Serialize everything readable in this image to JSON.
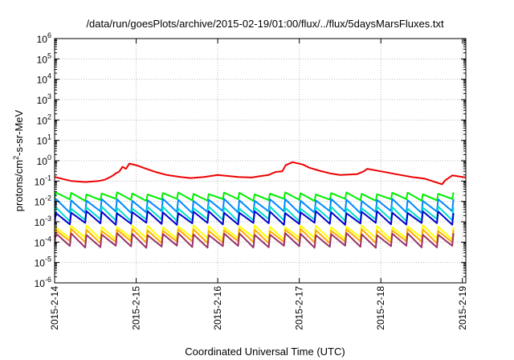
{
  "chart_data": {
    "type": "line",
    "title": "/data/run/goesPlots/archive/2015-02-19/01:00/flux/../flux/5daysMarsFluxes.txt",
    "xlabel": "Coordinated Universal Time (UTC)",
    "ylabel": {
      "base": "protons/cm",
      "exp": "2",
      "rest": "-s-sr-MeV"
    },
    "x_range": [
      "2015-2-14",
      "2015-2-19 01:00"
    ],
    "x_ticks": [
      "2015-2-14",
      "2015-2-15",
      "2015-2-16",
      "2015-2-17",
      "2015-2-18",
      "2015-2-19"
    ],
    "y_scale": "log",
    "ylim": [
      1e-06,
      1000000.0
    ],
    "y_ticks": [
      {
        "base": "10",
        "exp": "-6"
      },
      {
        "base": "10",
        "exp": "-5"
      },
      {
        "base": "10",
        "exp": "-4"
      },
      {
        "base": "10",
        "exp": "-3"
      },
      {
        "base": "10",
        "exp": "-2"
      },
      {
        "base": "10",
        "exp": "-1"
      },
      {
        "base": "10",
        "exp": "0"
      },
      {
        "base": "10",
        "exp": "1"
      },
      {
        "base": "10",
        "exp": "2"
      },
      {
        "base": "10",
        "exp": "3"
      },
      {
        "base": "10",
        "exp": "4"
      },
      {
        "base": "10",
        "exp": "5"
      },
      {
        "base": "10",
        "exp": "6"
      }
    ],
    "grid": true,
    "series": [
      {
        "color": "#ee0000",
        "values": [
          [
            "2015-02-14 00:00",
            0.16
          ],
          [
            "2015-02-14 03:00",
            0.12
          ],
          [
            "2015-02-14 05:00",
            0.1
          ],
          [
            "2015-02-14 09:00",
            0.09
          ],
          [
            "2015-02-14 13:00",
            0.1
          ],
          [
            "2015-02-14 15:00",
            0.12
          ],
          [
            "2015-02-14 17:00",
            0.18
          ],
          [
            "2015-02-14 18:00",
            0.24
          ],
          [
            "2015-02-14 19:00",
            0.29
          ],
          [
            "2015-02-14 20:00",
            0.5
          ],
          [
            "2015-02-14 21:00",
            0.4
          ],
          [
            "2015-02-14 22:00",
            0.72
          ],
          [
            "2015-02-15 00:00",
            0.6
          ],
          [
            "2015-02-15 03:00",
            0.4
          ],
          [
            "2015-02-15 06:00",
            0.27
          ],
          [
            "2015-02-15 09:00",
            0.2
          ],
          [
            "2015-02-15 13:00",
            0.16
          ],
          [
            "2015-02-15 16:00",
            0.14
          ],
          [
            "2015-02-15 20:00",
            0.16
          ],
          [
            "2015-02-16 00:00",
            0.2
          ],
          [
            "2015-02-16 06:00",
            0.16
          ],
          [
            "2015-02-16 10:00",
            0.15
          ],
          [
            "2015-02-16 13:00",
            0.18
          ],
          [
            "2015-02-16 15:00",
            0.2
          ],
          [
            "2015-02-16 17:00",
            0.28
          ],
          [
            "2015-02-16 19:00",
            0.3
          ],
          [
            "2015-02-16 20:00",
            0.6
          ],
          [
            "2015-02-16 22:00",
            0.85
          ],
          [
            "2015-02-17 01:00",
            0.65
          ],
          [
            "2015-02-17 03:00",
            0.45
          ],
          [
            "2015-02-17 06:00",
            0.32
          ],
          [
            "2015-02-17 09:00",
            0.24
          ],
          [
            "2015-02-17 12:00",
            0.2
          ],
          [
            "2015-02-17 17:00",
            0.22
          ],
          [
            "2015-02-17 19:00",
            0.3
          ],
          [
            "2015-02-17 20:00",
            0.4
          ],
          [
            "2015-02-18 00:00",
            0.3
          ],
          [
            "2015-02-18 05:00",
            0.21
          ],
          [
            "2015-02-18 09:00",
            0.16
          ],
          [
            "2015-02-18 13:00",
            0.13
          ],
          [
            "2015-02-18 18:00",
            0.07
          ],
          [
            "2015-02-18 19:00",
            0.11
          ],
          [
            "2015-02-18 21:00",
            0.19
          ],
          [
            "2015-02-19 00:00",
            0.16
          ],
          [
            "2015-02-19 01:00",
            0.15
          ]
        ]
      },
      {
        "color": "#00ee00",
        "sawtooth": {
          "high": 0.025,
          "low": 0.012,
          "period_hours": 4.5
        }
      },
      {
        "color": "#0088ff",
        "sawtooth": {
          "high": 0.012,
          "low": 0.003,
          "period_hours": 4.5
        }
      },
      {
        "color": "#00ddcc",
        "sawtooth": {
          "high": 0.005,
          "low": 0.0012,
          "period_hours": 4.5
        }
      },
      {
        "color": "#0000cc",
        "sawtooth": {
          "high": 0.003,
          "low": 0.0008,
          "period_hours": 4.5
        }
      },
      {
        "color": "#ffff00",
        "sawtooth": {
          "high": 0.0006,
          "low": 0.00015,
          "period_hours": 4.5
        }
      },
      {
        "color": "#ffaa00",
        "sawtooth": {
          "high": 0.0004,
          "low": 0.0001,
          "period_hours": 4.5
        }
      },
      {
        "color": "#993366",
        "sawtooth": {
          "high": 0.00025,
          "low": 6e-05,
          "period_hours": 4.5
        }
      }
    ]
  }
}
